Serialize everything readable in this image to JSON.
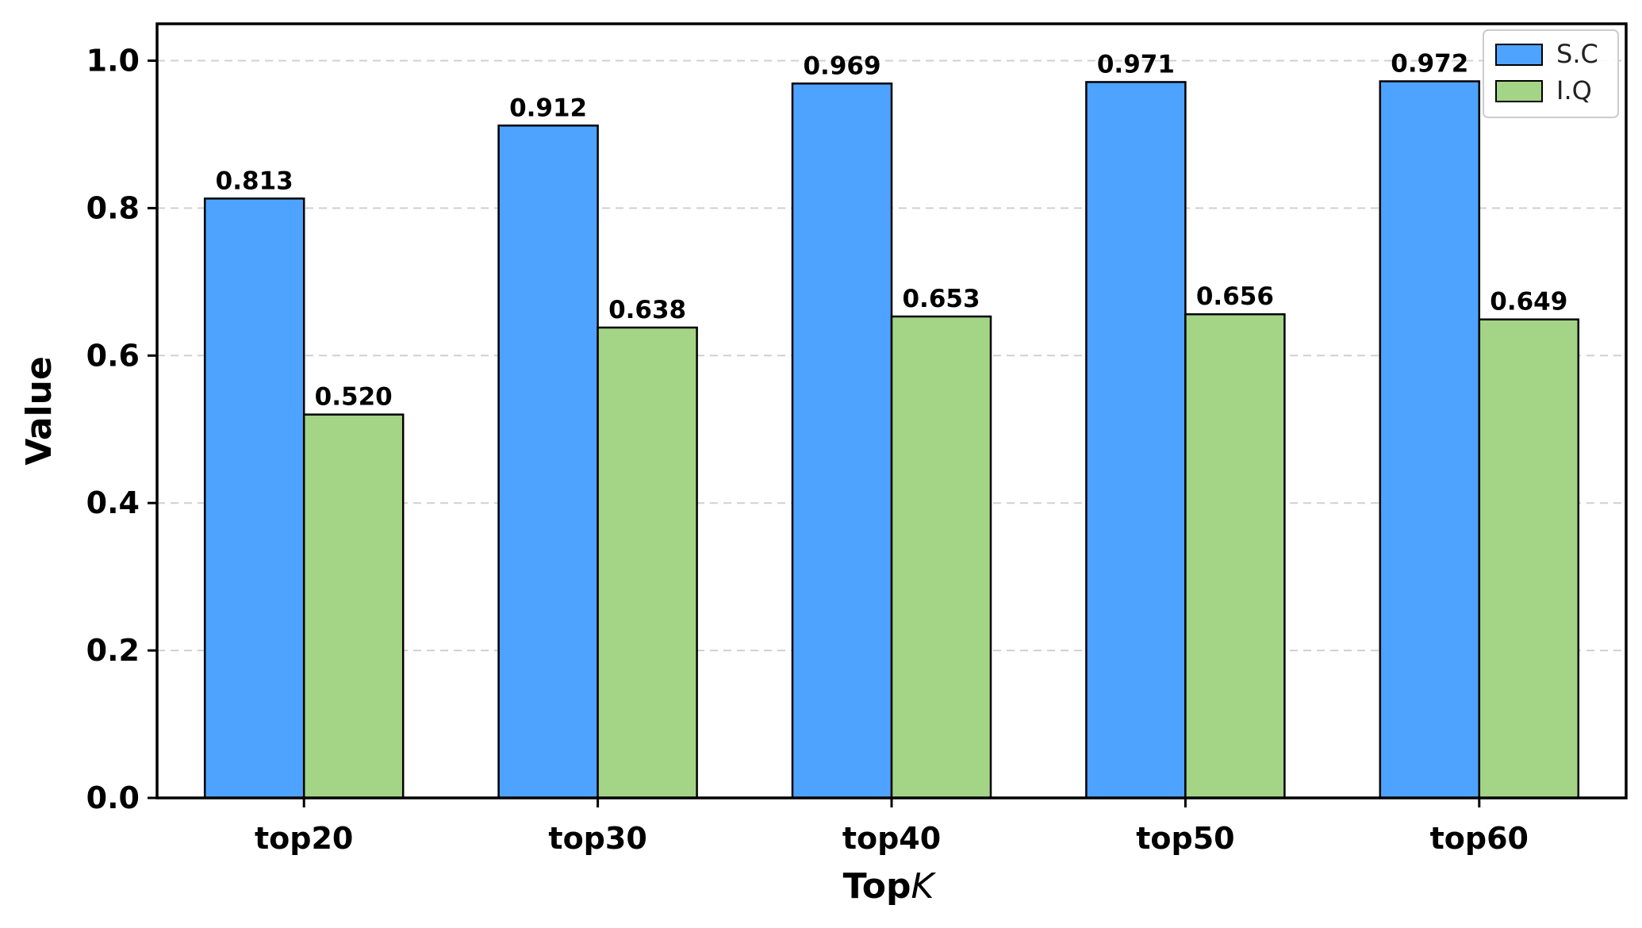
{
  "chart_data": {
    "type": "bar",
    "categories": [
      "top20",
      "top30",
      "top40",
      "top50",
      "top60"
    ],
    "series": [
      {
        "name": "S.C",
        "values": [
          0.813,
          0.912,
          0.969,
          0.971,
          0.972
        ],
        "labels": [
          "0.813",
          "0.912",
          "0.969",
          "0.971",
          "0.972"
        ],
        "color": "#4da3ff"
      },
      {
        "name": "I.Q",
        "values": [
          0.52,
          0.638,
          0.653,
          0.656,
          0.649
        ],
        "labels": [
          "0.520",
          "0.638",
          "0.653",
          "0.656",
          "0.649"
        ],
        "color": "#a4d486"
      }
    ],
    "xlabel": "Top",
    "xlabel_var": "K",
    "ylabel": "Value",
    "ylim": [
      0,
      1.05
    ],
    "yticks": [
      0.0,
      0.2,
      0.4,
      0.6,
      0.8,
      1.0
    ],
    "ytick_labels": [
      "0.0",
      "0.2",
      "0.4",
      "0.6",
      "0.8",
      "1.0"
    ],
    "grid": "horizontal-dashed",
    "legend_position": "top-right"
  }
}
